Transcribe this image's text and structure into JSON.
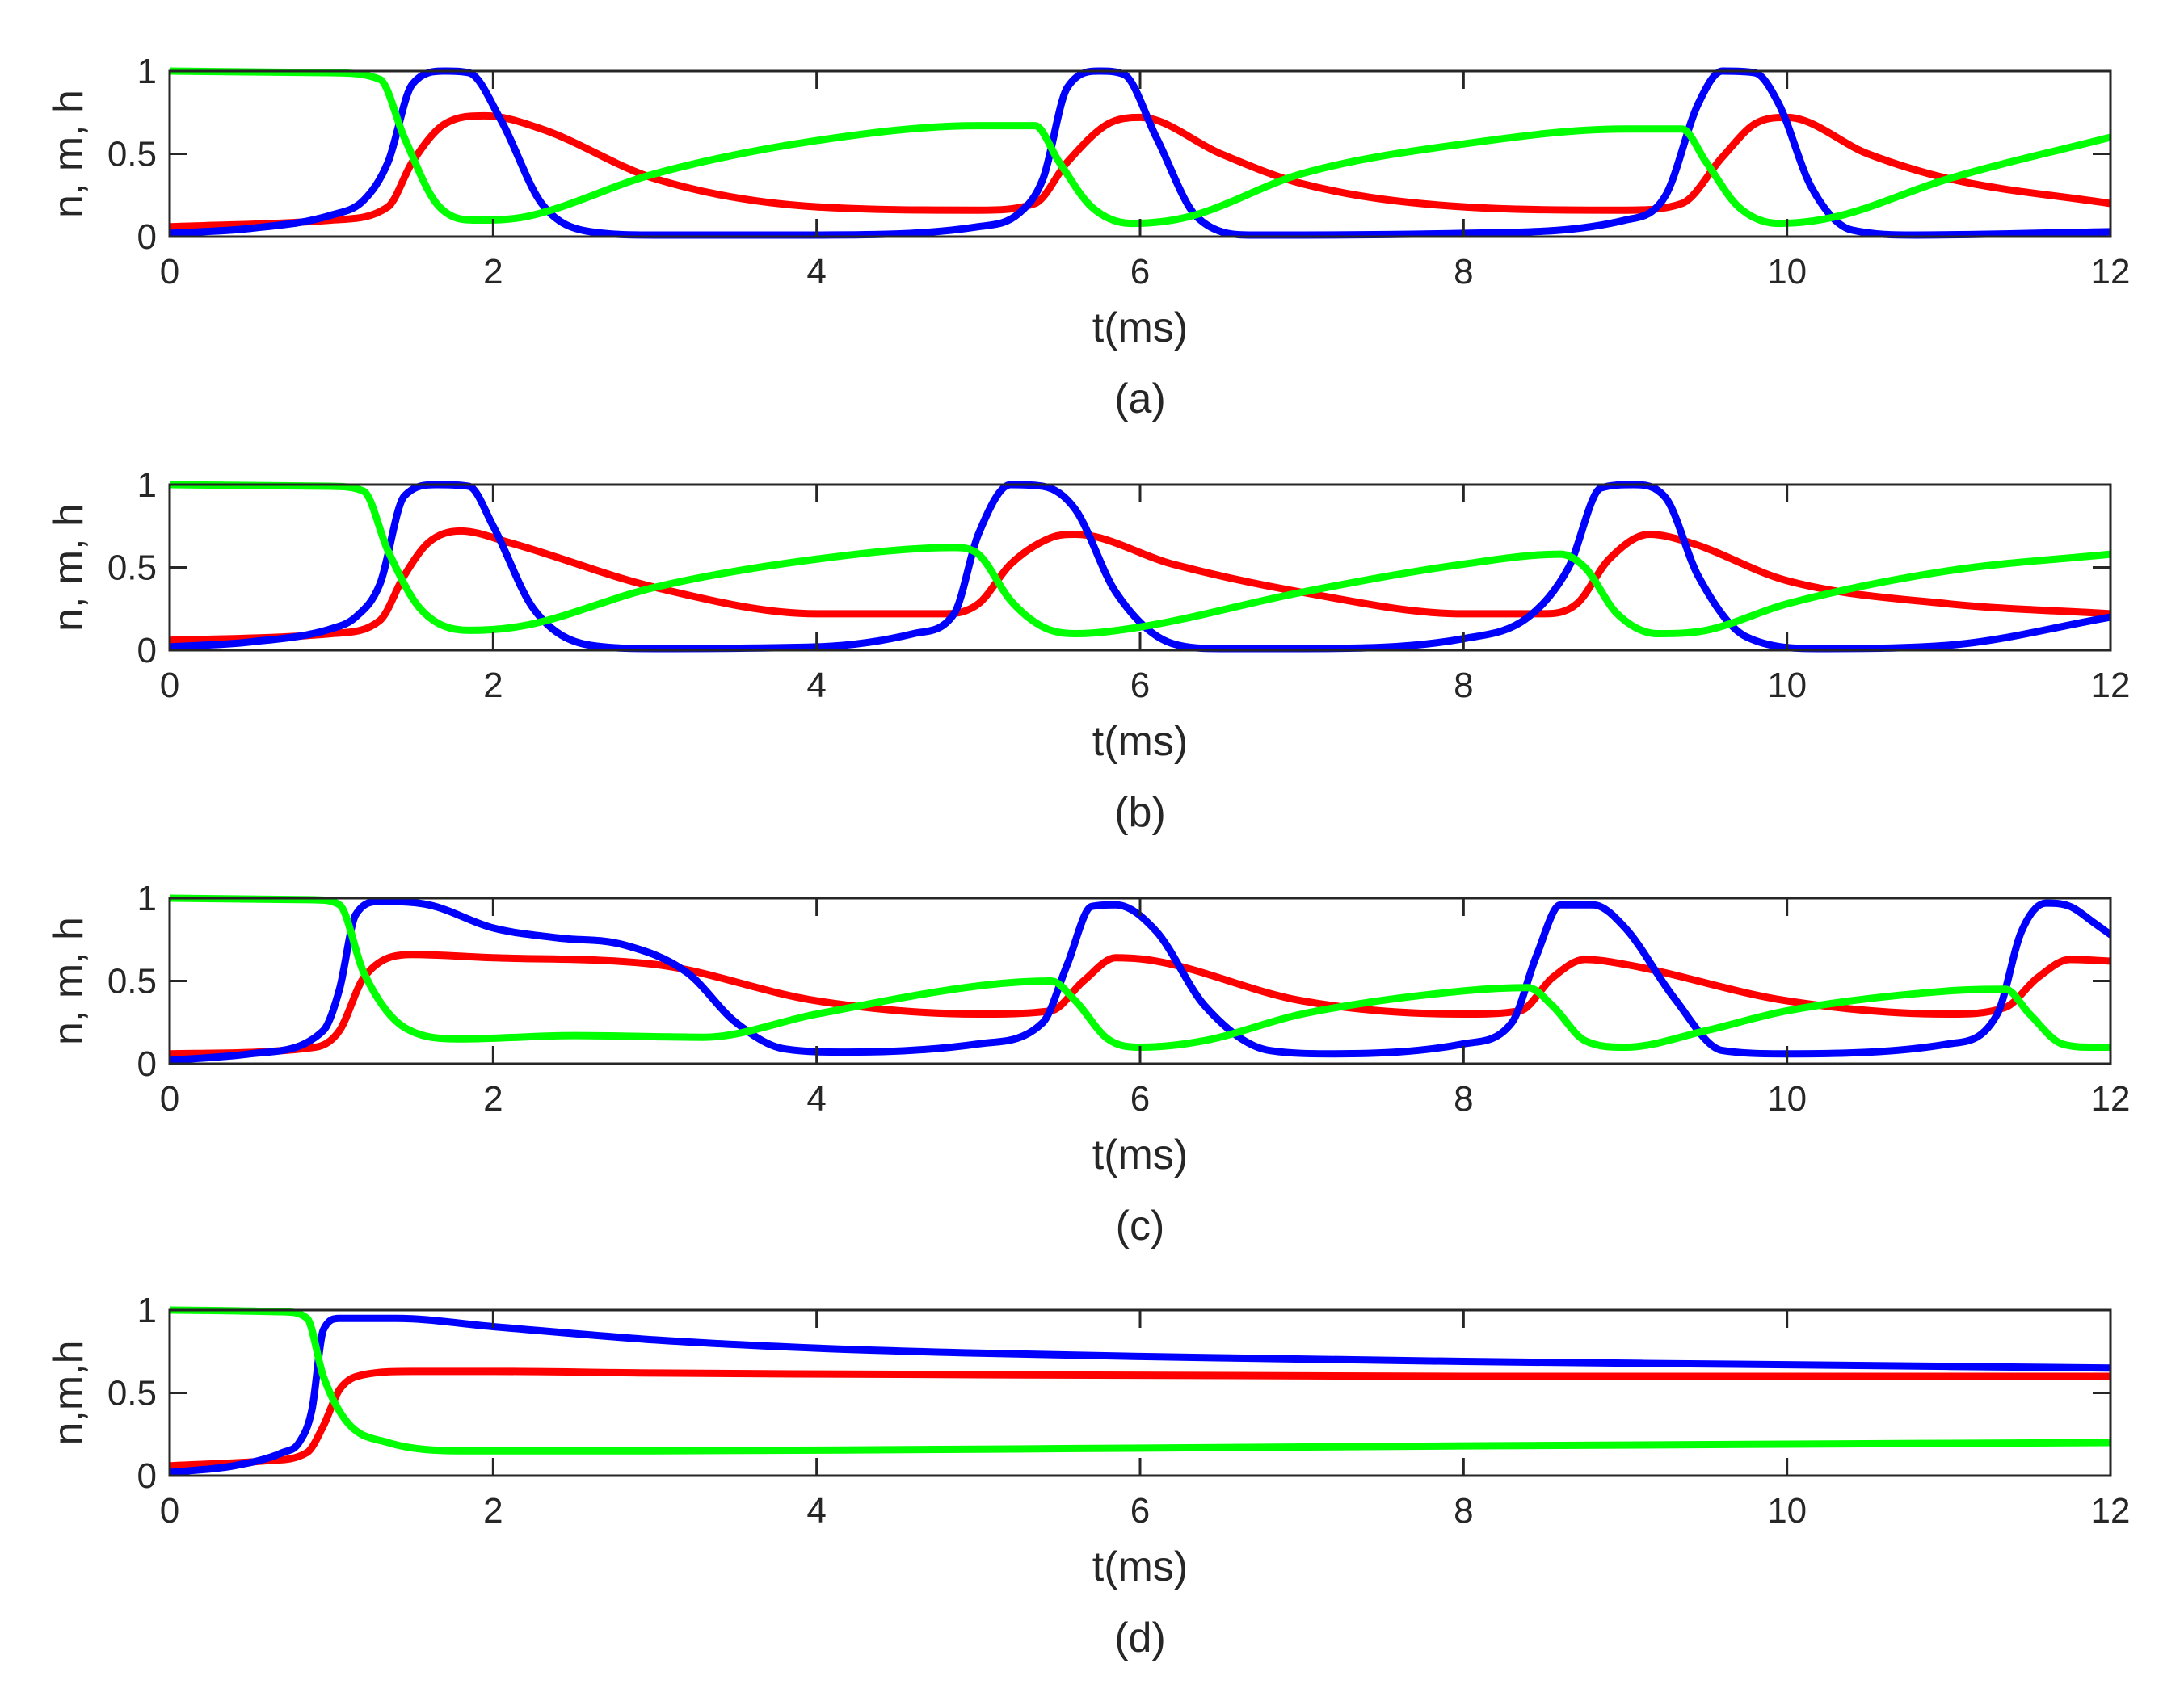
{
  "colors": {
    "n": "#0000ff",
    "m": "#ff0000",
    "h": "#00ff00",
    "axis": "#262626"
  },
  "chart_data": [
    {
      "type": "line",
      "caption": "(a)",
      "xlabel": "t(ms)",
      "ylabel": "n, m, h",
      "xlim": [
        0,
        12
      ],
      "ylim": [
        0,
        1
      ],
      "xticks": [
        0,
        2,
        4,
        6,
        8,
        10,
        12
      ],
      "yticks": [
        0,
        0.5,
        1
      ],
      "spikes": [
        1.55,
        5.6,
        9.6
      ],
      "series": [
        {
          "name": "n",
          "color": "#0000ff",
          "x": [
            0,
            0.5,
            1,
            1.2,
            1.35,
            1.5,
            1.7,
            1.85,
            2.05,
            2.3,
            2.6,
            3,
            4,
            5,
            5.25,
            5.4,
            5.55,
            5.75,
            5.9,
            6.1,
            6.35,
            6.7,
            7,
            8,
            9,
            9.25,
            9.45,
            9.6,
            9.8,
            9.95,
            10.15,
            10.4,
            10.8,
            12
          ],
          "values": [
            0.02,
            0.05,
            0.13,
            0.22,
            0.45,
            0.92,
            1.0,
            0.99,
            0.7,
            0.2,
            0.03,
            0.01,
            0.01,
            0.06,
            0.14,
            0.35,
            0.9,
            1.0,
            0.98,
            0.6,
            0.12,
            0.01,
            0.01,
            0.02,
            0.1,
            0.25,
            0.8,
            1.0,
            0.99,
            0.8,
            0.3,
            0.04,
            0.01,
            0.03
          ]
        },
        {
          "name": "m",
          "color": "#ff0000",
          "x": [
            0,
            1,
            1.35,
            1.5,
            1.7,
            1.95,
            2.3,
            3,
            4,
            5,
            5.35,
            5.55,
            5.8,
            6.0,
            6.5,
            7,
            8,
            9,
            9.35,
            9.6,
            9.8,
            10.0,
            10.5,
            11,
            12
          ],
          "values": [
            0.06,
            0.1,
            0.18,
            0.45,
            0.68,
            0.73,
            0.65,
            0.35,
            0.18,
            0.16,
            0.2,
            0.45,
            0.68,
            0.72,
            0.5,
            0.32,
            0.18,
            0.16,
            0.2,
            0.48,
            0.68,
            0.72,
            0.5,
            0.35,
            0.2
          ]
        },
        {
          "name": "h",
          "color": "#00ff00",
          "x": [
            0,
            1,
            1.3,
            1.45,
            1.65,
            1.9,
            2.2,
            3,
            4,
            5,
            5.35,
            5.5,
            5.7,
            5.95,
            6.3,
            7,
            8,
            9,
            9.35,
            9.5,
            9.7,
            9.95,
            10.3,
            11,
            12
          ],
          "values": [
            1.0,
            0.99,
            0.95,
            0.6,
            0.2,
            0.1,
            0.12,
            0.38,
            0.58,
            0.67,
            0.67,
            0.45,
            0.18,
            0.08,
            0.12,
            0.38,
            0.56,
            0.65,
            0.65,
            0.45,
            0.18,
            0.08,
            0.12,
            0.35,
            0.6
          ]
        }
      ]
    },
    {
      "type": "line",
      "caption": "(b)",
      "xlabel": "t(ms)",
      "ylabel": "n, m, h",
      "xlim": [
        0,
        12
      ],
      "ylim": [
        0,
        1
      ],
      "xticks": [
        0,
        2,
        4,
        6,
        8,
        10,
        12
      ],
      "yticks": [
        0,
        0.5,
        1
      ],
      "series": [
        {
          "name": "n",
          "color": "#0000ff",
          "x": [
            0,
            0.5,
            1,
            1.15,
            1.3,
            1.45,
            1.65,
            1.85,
            2.0,
            2.25,
            2.6,
            3,
            4,
            4.6,
            4.85,
            5.0,
            5.2,
            5.4,
            5.6,
            5.85,
            6.2,
            6.5,
            7,
            8,
            8.4,
            8.65,
            8.85,
            9.05,
            9.25,
            9.45,
            9.75,
            10.2,
            11,
            12
          ],
          "values": [
            0.02,
            0.05,
            0.13,
            0.2,
            0.4,
            0.93,
            1.0,
            0.99,
            0.75,
            0.25,
            0.03,
            0.01,
            0.02,
            0.1,
            0.22,
            0.7,
            1.0,
            0.99,
            0.85,
            0.35,
            0.04,
            0.01,
            0.01,
            0.07,
            0.2,
            0.5,
            0.98,
            1.0,
            0.92,
            0.45,
            0.08,
            0.01,
            0.03,
            0.2
          ]
        },
        {
          "name": "m",
          "color": "#ff0000",
          "x": [
            0,
            1,
            1.3,
            1.45,
            1.6,
            1.8,
            2.1,
            3,
            4,
            4.8,
            5.0,
            5.2,
            5.45,
            5.6,
            6.2,
            7,
            8,
            8.5,
            8.7,
            8.9,
            9.15,
            9.4,
            10,
            11,
            12
          ],
          "values": [
            0.06,
            0.1,
            0.18,
            0.45,
            0.65,
            0.72,
            0.65,
            0.38,
            0.22,
            0.22,
            0.28,
            0.52,
            0.68,
            0.7,
            0.52,
            0.35,
            0.22,
            0.22,
            0.28,
            0.55,
            0.7,
            0.65,
            0.42,
            0.28,
            0.22
          ]
        },
        {
          "name": "h",
          "color": "#00ff00",
          "x": [
            0,
            1,
            1.2,
            1.35,
            1.55,
            1.85,
            2.2,
            3,
            4,
            4.85,
            5.0,
            5.2,
            5.4,
            5.6,
            6.0,
            7,
            8,
            8.6,
            8.75,
            8.95,
            9.2,
            9.5,
            10,
            11,
            12
          ],
          "values": [
            1.0,
            0.99,
            0.96,
            0.6,
            0.25,
            0.12,
            0.15,
            0.38,
            0.55,
            0.62,
            0.58,
            0.3,
            0.14,
            0.1,
            0.14,
            0.35,
            0.52,
            0.58,
            0.5,
            0.22,
            0.1,
            0.12,
            0.28,
            0.48,
            0.58
          ]
        }
      ]
    },
    {
      "type": "line",
      "caption": "(c)",
      "xlabel": "t(ms)",
      "ylabel": "n, m, h",
      "xlim": [
        0,
        12
      ],
      "ylim": [
        0,
        1
      ],
      "xticks": [
        0,
        2,
        4,
        6,
        8,
        10,
        12
      ],
      "yticks": [
        0,
        0.5,
        1
      ],
      "series": [
        {
          "name": "n",
          "color": "#0000ff",
          "x": [
            0,
            0.5,
            0.95,
            1.05,
            1.15,
            1.3,
            1.6,
            2.0,
            2.4,
            2.8,
            3.2,
            3.5,
            3.8,
            4.2,
            5,
            5.4,
            5.55,
            5.7,
            5.85,
            6.1,
            6.4,
            6.8,
            7.2,
            8,
            8.3,
            8.45,
            8.6,
            8.8,
            9.0,
            9.3,
            9.6,
            10,
            11,
            11.3,
            11.45,
            11.6,
            11.75,
            11.9,
            12
          ],
          "values": [
            0.02,
            0.06,
            0.2,
            0.45,
            0.9,
            0.98,
            0.96,
            0.82,
            0.76,
            0.72,
            0.55,
            0.25,
            0.09,
            0.07,
            0.12,
            0.25,
            0.6,
            0.95,
            0.96,
            0.8,
            0.35,
            0.08,
            0.06,
            0.12,
            0.25,
            0.65,
            0.96,
            0.96,
            0.82,
            0.4,
            0.08,
            0.06,
            0.12,
            0.3,
            0.8,
            0.97,
            0.95,
            0.85,
            0.78
          ]
        },
        {
          "name": "m",
          "color": "#ff0000",
          "x": [
            0,
            0.9,
            1.05,
            1.2,
            1.5,
            2,
            3,
            4,
            5,
            5.45,
            5.65,
            5.85,
            6.1,
            7,
            8,
            8.35,
            8.55,
            8.75,
            9,
            10,
            11,
            11.35,
            11.55,
            11.75,
            12
          ],
          "values": [
            0.06,
            0.1,
            0.2,
            0.52,
            0.66,
            0.64,
            0.6,
            0.38,
            0.3,
            0.32,
            0.5,
            0.64,
            0.62,
            0.38,
            0.3,
            0.32,
            0.52,
            0.63,
            0.6,
            0.38,
            0.3,
            0.34,
            0.52,
            0.63,
            0.62
          ]
        },
        {
          "name": "h",
          "color": "#00ff00",
          "x": [
            0,
            0.9,
            1.05,
            1.2,
            1.45,
            1.8,
            2.5,
            3.3,
            4,
            5,
            5.45,
            5.6,
            5.8,
            6.0,
            6.4,
            7,
            8,
            8.4,
            8.55,
            8.75,
            9.0,
            9.5,
            10,
            11,
            11.35,
            11.5,
            11.7,
            11.9,
            12
          ],
          "values": [
            1.0,
            0.99,
            0.96,
            0.55,
            0.22,
            0.15,
            0.17,
            0.16,
            0.3,
            0.47,
            0.5,
            0.38,
            0.15,
            0.1,
            0.14,
            0.3,
            0.44,
            0.46,
            0.35,
            0.14,
            0.1,
            0.2,
            0.32,
            0.44,
            0.45,
            0.3,
            0.12,
            0.1,
            0.1
          ]
        }
      ]
    },
    {
      "type": "line",
      "caption": "(d)",
      "xlabel": "t(ms)",
      "ylabel": "n,m,h",
      "xlim": [
        0,
        12
      ],
      "ylim": [
        0,
        1
      ],
      "xticks": [
        0,
        2,
        4,
        6,
        8,
        10,
        12
      ],
      "yticks": [
        0,
        0.5,
        1
      ],
      "series": [
        {
          "name": "n",
          "color": "#0000ff",
          "x": [
            0,
            0.4,
            0.7,
            0.8,
            0.88,
            0.95,
            1.05,
            1.4,
            2,
            3,
            4,
            5,
            6,
            8,
            10,
            12
          ],
          "values": [
            0.02,
            0.06,
            0.14,
            0.2,
            0.4,
            0.88,
            0.95,
            0.95,
            0.9,
            0.82,
            0.77,
            0.74,
            0.72,
            0.69,
            0.67,
            0.65
          ]
        },
        {
          "name": "m",
          "color": "#ff0000",
          "x": [
            0,
            0.6,
            0.85,
            0.95,
            1.05,
            1.2,
            1.5,
            2,
            3,
            5,
            8,
            12
          ],
          "values": [
            0.06,
            0.09,
            0.14,
            0.3,
            0.52,
            0.61,
            0.63,
            0.63,
            0.62,
            0.61,
            0.6,
            0.6
          ]
        },
        {
          "name": "h",
          "color": "#00ff00",
          "x": [
            0,
            0.7,
            0.85,
            0.95,
            1.1,
            1.35,
            1.8,
            3,
            5,
            8,
            12
          ],
          "values": [
            1.0,
            0.99,
            0.95,
            0.6,
            0.32,
            0.2,
            0.15,
            0.15,
            0.16,
            0.18,
            0.2
          ]
        }
      ]
    }
  ]
}
